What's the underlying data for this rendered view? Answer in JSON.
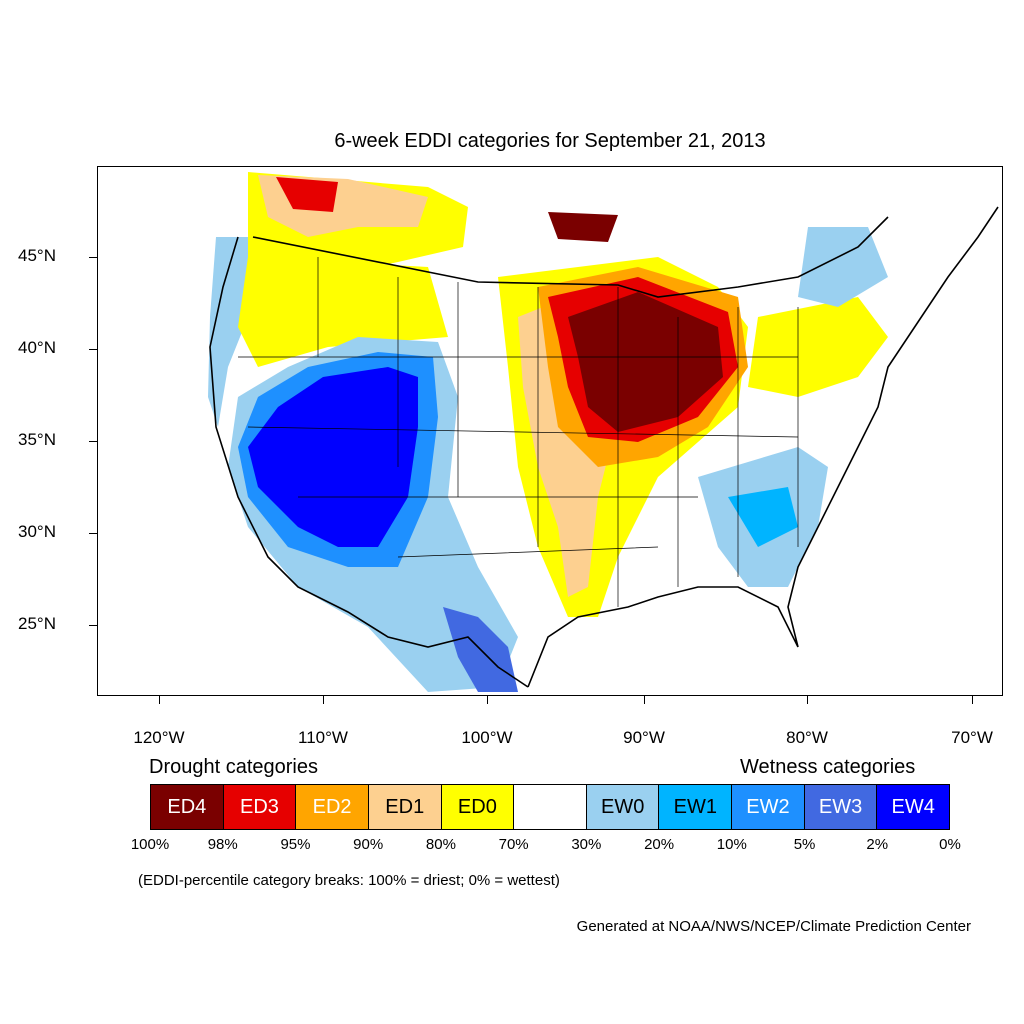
{
  "title": "6-week EDDI categories for September 21, 2013",
  "lat_labels": [
    "45°N",
    "40°N",
    "35°N",
    "30°N",
    "25°N"
  ],
  "lon_labels": [
    "120°W",
    "110°W",
    "100°W",
    "90°W",
    "80°W",
    "70°W"
  ],
  "legend": {
    "drought_heading": "Drought categories",
    "wetness_heading": "Wetness categories",
    "categories": [
      {
        "label": "ED4",
        "color": "#7a0000",
        "text_color": "#ffffff"
      },
      {
        "label": "ED3",
        "color": "#e60000",
        "text_color": "#ffffff"
      },
      {
        "label": "ED2",
        "color": "#ffa500",
        "text_color": "#ffffff"
      },
      {
        "label": "ED1",
        "color": "#fdd090",
        "text_color": "#000000"
      },
      {
        "label": "ED0",
        "color": "#ffff00",
        "text_color": "#000000"
      },
      {
        "label": "",
        "color": "#ffffff",
        "text_color": "#000000"
      },
      {
        "label": "EW0",
        "color": "#9ad0f0",
        "text_color": "#000000"
      },
      {
        "label": "EW1",
        "color": "#00b4ff",
        "text_color": "#000000"
      },
      {
        "label": "EW2",
        "color": "#1e90ff",
        "text_color": "#ffffff"
      },
      {
        "label": "EW3",
        "color": "#4169e1",
        "text_color": "#ffffff"
      },
      {
        "label": "EW4",
        "color": "#0000ff",
        "text_color": "#ffffff"
      }
    ],
    "breaks": [
      "100%",
      "98%",
      "95%",
      "90%",
      "80%",
      "70%",
      "30%",
      "20%",
      "10%",
      "5%",
      "2%",
      "0%"
    ]
  },
  "note": "(EDDI-percentile category breaks: 100% = driest; 0% = wettest)",
  "credit": "Generated at NOAA/NWS/NCEP/Climate Prediction Center"
}
